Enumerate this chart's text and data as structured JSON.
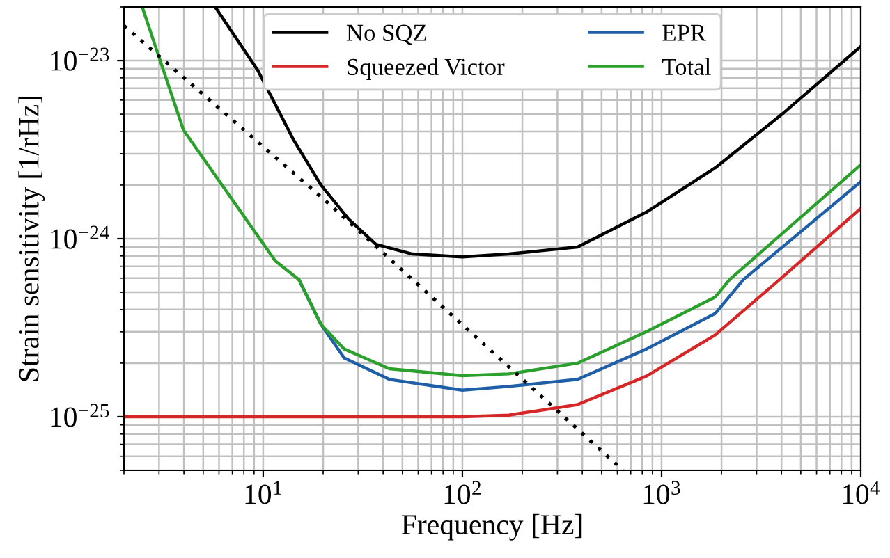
{
  "chart_data": {
    "type": "line",
    "xlabel": "Frequency [Hz]",
    "ylabel": "Strain sensitivity [1/rHz]",
    "log": "xy",
    "grid": true,
    "legend": "top",
    "line_style": "solid",
    "marker": "none",
    "xlim": [
      2,
      10000
    ],
    "ylim": [
      5e-26,
      2e-23
    ],
    "xticks": [
      {
        "value": 10,
        "label": "10$^{1}$"
      },
      {
        "value": 100,
        "label": "10$^{2}$"
      },
      {
        "value": 1000,
        "label": "10$^{3}$"
      },
      {
        "value": 10000,
        "label": "10$^{4}$"
      }
    ],
    "yticks": [
      {
        "value": 1e-25,
        "label": "10$^{−25}$"
      },
      {
        "value": 1e-24,
        "label": "10$^{−24}$"
      },
      {
        "value": 1e-23,
        "label": "10$^{−23}$"
      }
    ],
    "series": [
      {
        "name": "No SQZ",
        "color": "#000000",
        "x": [
          5.74,
          9.4,
          14.2,
          19.5,
          26.8,
          36.8,
          56,
          100,
          171,
          379,
          840,
          1860,
          4110,
          10000
        ],
        "values": [
          2e-23,
          8.8e-24,
          3.59e-24,
          2e-24,
          1.29e-24,
          9.3e-25,
          8.2e-25,
          7.9e-25,
          8.2e-25,
          8.97e-25,
          1.41e-24,
          2.5e-24,
          5.1e-24,
          1.2e-23
        ]
      },
      {
        "name": "Squeezed Victor",
        "color": "#d62728",
        "x": [
          2,
          50,
          100,
          171,
          379,
          840,
          1860,
          3920,
          10000
        ],
        "values": [
          1e-25,
          1e-25,
          1e-25,
          1.02e-25,
          1.17e-25,
          1.69e-25,
          2.88e-25,
          5.9e-25,
          1.48e-24
        ]
      },
      {
        "name": "EPR",
        "color": "#1f5fa8",
        "x": [
          15.1,
          19.5,
          25.5,
          43,
          100,
          171,
          379,
          840,
          1860,
          2580,
          10000
        ],
        "values": [
          5.9e-25,
          3.3e-25,
          2.14e-25,
          1.62e-25,
          1.41e-25,
          1.48e-25,
          1.62e-25,
          2.4e-25,
          3.8e-25,
          5.9e-25,
          2.09e-24
        ]
      },
      {
        "name": "Total",
        "color": "#2ca02c",
        "x": [
          2.47,
          3.98,
          11.5,
          15.1,
          19.5,
          25.5,
          43,
          100,
          171,
          379,
          840,
          1860,
          2200,
          10000
        ],
        "values": [
          2e-23,
          4.07e-24,
          7.5e-25,
          5.9e-25,
          3.3e-25,
          2.4e-25,
          1.86e-25,
          1.7e-25,
          1.74e-25,
          2e-25,
          3e-25,
          4.7e-25,
          5.9e-25,
          2.6e-24
        ]
      },
      {
        "color": "#000000",
        "line_style": "dotted",
        "x": [
          2,
          21.8,
          641
        ],
        "values": [
          1.57e-23,
          1.54e-24,
          5e-26
        ]
      }
    ]
  }
}
